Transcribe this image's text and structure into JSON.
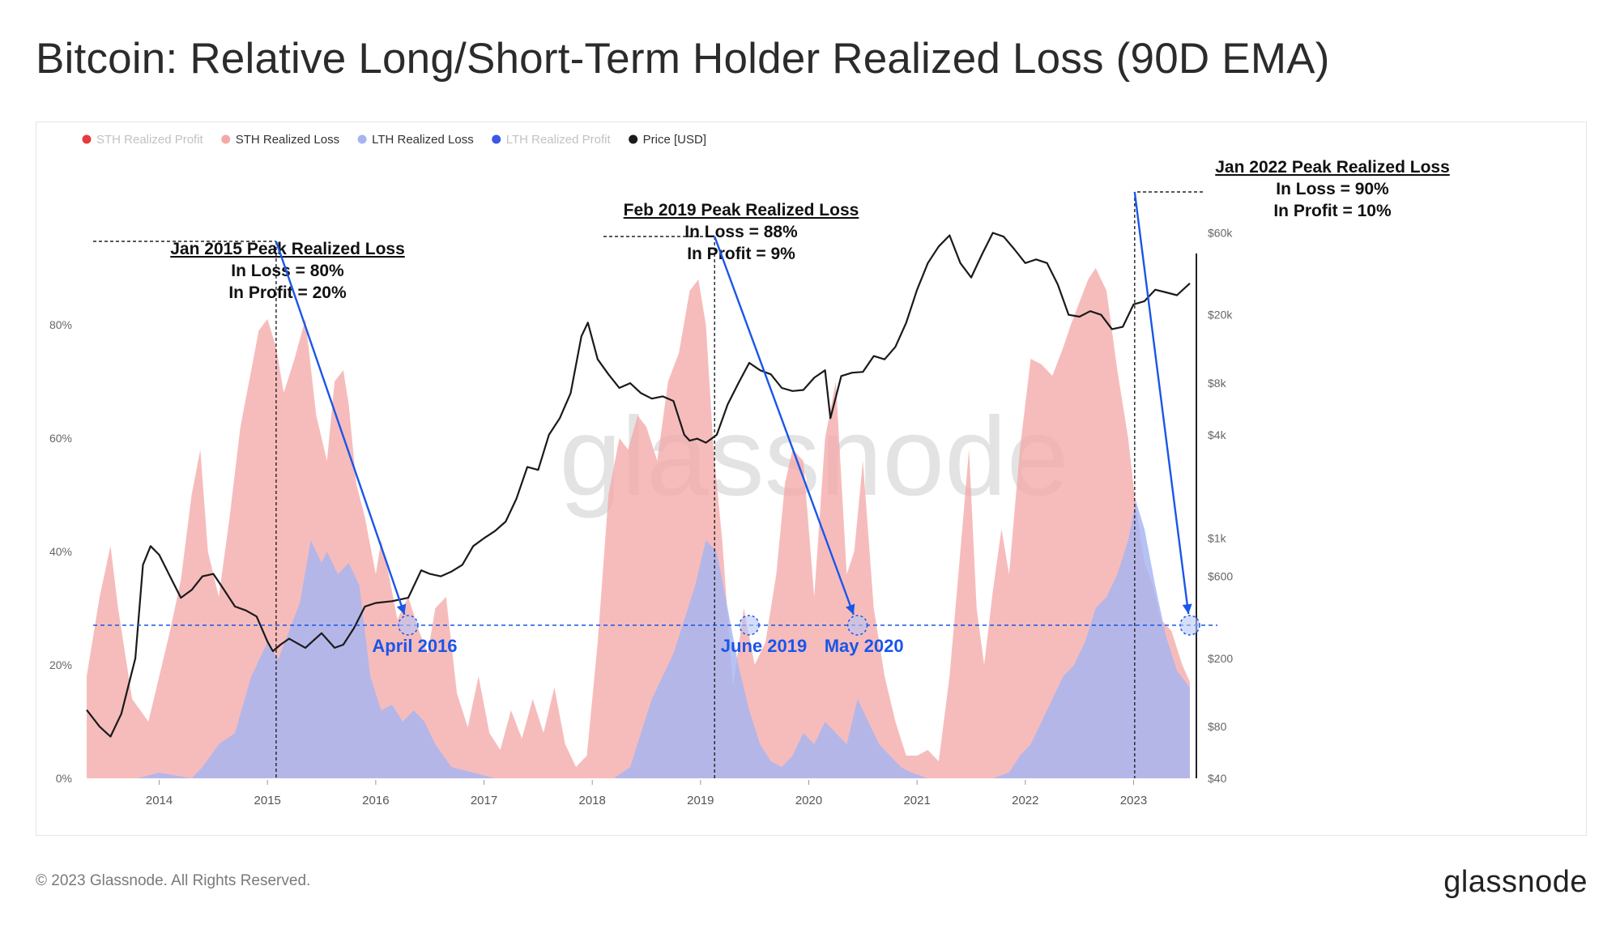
{
  "title": "Bitcoin: Relative Long/Short-Term Holder Realized Loss (90D EMA)",
  "footer": {
    "copyright": "© 2023 Glassnode. All Rights Reserved.",
    "brand": "glassnode"
  },
  "watermark": "glassnode",
  "colors": {
    "sth_profit": "#e8393f",
    "sth_loss": "#f3a9a9",
    "lth_loss": "#a6b4f2",
    "lth_profit": "#3b57e8",
    "price": "#1a1a1a",
    "accent": "#1a56e8"
  },
  "chart_data": {
    "type": "area",
    "x_range": [
      2013.33,
      2023.55
    ],
    "xticks": [
      "2014",
      "2015",
      "2016",
      "2017",
      "2018",
      "2019",
      "2020",
      "2021",
      "2022",
      "2023"
    ],
    "xtick_values": [
      2014,
      2015,
      2016,
      2017,
      2018,
      2019,
      2020,
      2021,
      2022,
      2023
    ],
    "y_left": {
      "ticks": [
        "0%",
        "20%",
        "40%",
        "60%",
        "80%"
      ],
      "values": [
        0,
        20,
        40,
        60,
        80
      ],
      "range": [
        0,
        100
      ]
    },
    "y_right": {
      "ticks": [
        "$40",
        "$80",
        "$200",
        "$600",
        "$1k",
        "$4k",
        "$8k",
        "$20k",
        "$60k"
      ],
      "values": [
        40,
        80,
        200,
        600,
        1000,
        4000,
        8000,
        20000,
        60000
      ],
      "scale": "log",
      "range": [
        40,
        80000
      ]
    },
    "legend": [
      {
        "name": "STH Realized Profit",
        "color": "#e8393f",
        "active": false
      },
      {
        "name": "STH Realized Loss",
        "color": "#f3a9a9",
        "active": true
      },
      {
        "name": "LTH Realized Loss",
        "color": "#a6b4f2",
        "active": true
      },
      {
        "name": "LTH Realized Profit",
        "color": "#3b57e8",
        "active": false
      },
      {
        "name": "Price [USD]",
        "color": "#1a1a1a",
        "active": true
      }
    ],
    "series": [
      {
        "name": "STH Realized Loss",
        "x": [
          2013.33,
          2013.45,
          2013.55,
          2013.62,
          2013.75,
          2013.9,
          2014.0,
          2014.1,
          2014.2,
          2014.3,
          2014.38,
          2014.45,
          2014.55,
          2014.65,
          2014.75,
          2014.85,
          2014.92,
          2015.0,
          2015.08,
          2015.15,
          2015.25,
          2015.35,
          2015.45,
          2015.55,
          2015.62,
          2015.7,
          2015.75,
          2015.82,
          2015.9,
          2016.0,
          2016.05,
          2016.12,
          2016.2,
          2016.3,
          2016.4,
          2016.48,
          2016.55,
          2016.65,
          2016.75,
          2016.85,
          2016.95,
          2017.05,
          2017.15,
          2017.25,
          2017.35,
          2017.45,
          2017.55,
          2017.65,
          2017.75,
          2017.85,
          2017.95,
          2018.05,
          2018.15,
          2018.25,
          2018.33,
          2018.42,
          2018.5,
          2018.6,
          2018.7,
          2018.8,
          2018.9,
          2018.98,
          2019.05,
          2019.12,
          2019.2,
          2019.3,
          2019.4,
          2019.5,
          2019.6,
          2019.7,
          2019.78,
          2019.85,
          2019.95,
          2020.05,
          2020.15,
          2020.25,
          2020.35,
          2020.42,
          2020.5,
          2020.6,
          2020.7,
          2020.8,
          2020.9,
          2021.0,
          2021.1,
          2021.2,
          2021.3,
          2021.4,
          2021.48,
          2021.55,
          2021.62,
          2021.7,
          2021.78,
          2021.85,
          2021.95,
          2022.05,
          2022.15,
          2022.25,
          2022.35,
          2022.42,
          2022.5,
          2022.58,
          2022.65,
          2022.75,
          2022.85,
          2022.95,
          2023.02,
          2023.1,
          2023.18,
          2023.25,
          2023.35,
          2023.45,
          2023.52
        ],
        "values": [
          18,
          32,
          41,
          30,
          14,
          10,
          18,
          26,
          35,
          50,
          58,
          40,
          32,
          46,
          62,
          72,
          79,
          81,
          76,
          68,
          74,
          81,
          64,
          56,
          70,
          72,
          66,
          52,
          46,
          36,
          42,
          36,
          28,
          32,
          26,
          22,
          30,
          32,
          15,
          9,
          18,
          8,
          5,
          12,
          7,
          14,
          8,
          16,
          6,
          2,
          4,
          24,
          50,
          60,
          58,
          64,
          62,
          56,
          70,
          75,
          86,
          88,
          80,
          58,
          42,
          16,
          30,
          20,
          24,
          36,
          52,
          58,
          56,
          32,
          60,
          70,
          36,
          40,
          56,
          30,
          18,
          10,
          4,
          4,
          5,
          3,
          18,
          40,
          58,
          30,
          20,
          33,
          44,
          36,
          58,
          74,
          73,
          71,
          76,
          80,
          84,
          88,
          90,
          86,
          72,
          60,
          48,
          38,
          34,
          28,
          26,
          20,
          17
        ]
      },
      {
        "name": "LTH Realized Loss",
        "x": [
          2013.33,
          2013.8,
          2014.0,
          2014.3,
          2014.4,
          2014.55,
          2014.7,
          2014.85,
          2015.0,
          2015.1,
          2015.2,
          2015.3,
          2015.4,
          2015.5,
          2015.55,
          2015.65,
          2015.75,
          2015.85,
          2015.95,
          2016.05,
          2016.15,
          2016.25,
          2016.35,
          2016.45,
          2016.55,
          2016.7,
          2016.9,
          2017.1,
          2017.5,
          2017.9,
          2018.2,
          2018.35,
          2018.45,
          2018.55,
          2018.65,
          2018.75,
          2018.85,
          2018.95,
          2019.05,
          2019.15,
          2019.25,
          2019.35,
          2019.45,
          2019.55,
          2019.65,
          2019.75,
          2019.85,
          2019.95,
          2020.05,
          2020.15,
          2020.25,
          2020.35,
          2020.45,
          2020.55,
          2020.65,
          2020.75,
          2020.85,
          2020.95,
          2021.1,
          2021.3,
          2021.5,
          2021.7,
          2021.85,
          2021.95,
          2022.05,
          2022.15,
          2022.25,
          2022.35,
          2022.45,
          2022.55,
          2022.65,
          2022.75,
          2022.85,
          2022.95,
          2023.02,
          2023.1,
          2023.2,
          2023.3,
          2023.4,
          2023.52
        ],
        "values": [
          0,
          0,
          1,
          0,
          2,
          6,
          8,
          18,
          24,
          21,
          26,
          31,
          42,
          38,
          40,
          36,
          38,
          34,
          18,
          12,
          13,
          10,
          12,
          10,
          6,
          2,
          1,
          0,
          0,
          0,
          0,
          2,
          8,
          14,
          18,
          22,
          28,
          34,
          42,
          40,
          30,
          20,
          12,
          6,
          3,
          2,
          4,
          8,
          6,
          10,
          8,
          6,
          14,
          10,
          6,
          4,
          2,
          1,
          0,
          0,
          0,
          0,
          1,
          4,
          6,
          10,
          14,
          18,
          20,
          24,
          30,
          32,
          36,
          42,
          49,
          44,
          34,
          25,
          19,
          16
        ]
      },
      {
        "name": "Price [USD]",
        "x": [
          2013.33,
          2013.45,
          2013.55,
          2013.65,
          2013.78,
          2013.85,
          2013.92,
          2014.0,
          2014.1,
          2014.2,
          2014.3,
          2014.4,
          2014.5,
          2014.6,
          2014.7,
          2014.8,
          2014.9,
          2015.0,
          2015.05,
          2015.12,
          2015.2,
          2015.35,
          2015.5,
          2015.62,
          2015.7,
          2015.8,
          2015.9,
          2016.0,
          2016.15,
          2016.3,
          2016.42,
          2016.5,
          2016.6,
          2016.7,
          2016.8,
          2016.9,
          2017.0,
          2017.1,
          2017.2,
          2017.3,
          2017.4,
          2017.5,
          2017.6,
          2017.7,
          2017.8,
          2017.9,
          2017.96,
          2018.05,
          2018.15,
          2018.25,
          2018.35,
          2018.45,
          2018.55,
          2018.65,
          2018.75,
          2018.85,
          2018.9,
          2018.97,
          2019.05,
          2019.15,
          2019.25,
          2019.35,
          2019.45,
          2019.55,
          2019.65,
          2019.75,
          2019.85,
          2019.95,
          2020.05,
          2020.15,
          2020.2,
          2020.3,
          2020.4,
          2020.5,
          2020.6,
          2020.7,
          2020.8,
          2020.9,
          2021.0,
          2021.1,
          2021.2,
          2021.3,
          2021.4,
          2021.5,
          2021.6,
          2021.7,
          2021.8,
          2021.9,
          2022.0,
          2022.1,
          2022.2,
          2022.3,
          2022.4,
          2022.5,
          2022.6,
          2022.7,
          2022.8,
          2022.9,
          2023.0,
          2023.1,
          2023.2,
          2023.3,
          2023.4,
          2023.52
        ],
        "values": [
          100,
          80,
          70,
          95,
          200,
          700,
          900,
          800,
          600,
          450,
          500,
          600,
          620,
          500,
          400,
          380,
          350,
          250,
          220,
          240,
          260,
          230,
          280,
          230,
          240,
          300,
          400,
          420,
          430,
          450,
          650,
          620,
          600,
          640,
          700,
          900,
          1000,
          1100,
          1250,
          1700,
          2600,
          2500,
          4000,
          5000,
          7000,
          15000,
          18000,
          11000,
          9000,
          7500,
          8000,
          7000,
          6500,
          6700,
          6300,
          4000,
          3700,
          3800,
          3600,
          4000,
          6000,
          8000,
          10500,
          9500,
          9000,
          7500,
          7200,
          7300,
          8600,
          9500,
          5000,
          8800,
          9200,
          9300,
          11500,
          11000,
          13000,
          18000,
          28000,
          40000,
          50000,
          58000,
          40000,
          33000,
          45000,
          60000,
          57000,
          48000,
          40000,
          42000,
          40000,
          30000,
          20000,
          19500,
          21000,
          20000,
          16500,
          17000,
          23000,
          24000,
          28000,
          27000,
          26000,
          30500
        ]
      }
    ],
    "annotations": [
      {
        "title": "Jan 2015 Peak Realized Loss",
        "in_loss": "In Loss = 80%",
        "in_profit": "In Profit = 20%",
        "peak": {
          "x": 2015.08,
          "y": 81
        },
        "bottom": {
          "x": 2016.3,
          "y": 27,
          "label": "April 2016"
        }
      },
      {
        "title": "Feb 2019 Peak Realized Loss",
        "in_loss": "In Loss = 88%",
        "in_profit": "In Profit = 9%",
        "peak": {
          "x": 2019.13,
          "y": 85
        },
        "bottom": {
          "x": 2020.45,
          "y": 27,
          "label": "May 2020"
        }
      },
      {
        "title": "Jan 2022 Peak Realized Loss",
        "in_loss": "In Loss = 90%",
        "in_profit": "In Profit = 10%",
        "peak": {
          "x": 2023.01,
          "y": 90
        },
        "bottom": {
          "x": 2023.52,
          "y": 27
        }
      }
    ],
    "extra_markers": [
      {
        "x": 2019.45,
        "y": 27,
        "label": "June 2019"
      }
    ],
    "threshold": 27,
    "grid": false,
    "legend_position": "top-left"
  }
}
